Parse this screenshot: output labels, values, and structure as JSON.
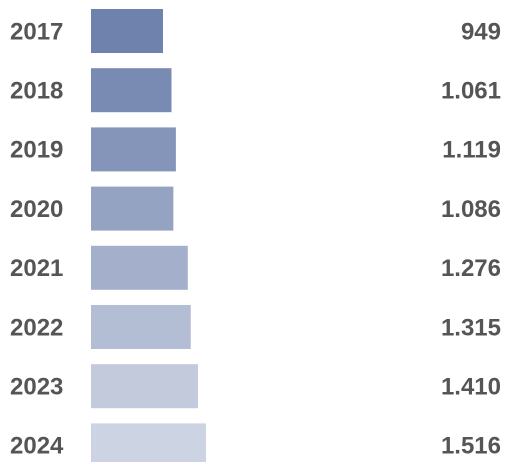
{
  "chart_data": {
    "type": "bar",
    "orientation": "horizontal",
    "categories": [
      "2017",
      "2018",
      "2019",
      "2020",
      "2021",
      "2022",
      "2023",
      "2024"
    ],
    "values": [
      949,
      1061,
      1119,
      1086,
      1276,
      1315,
      1410,
      1516
    ],
    "value_labels": [
      "949",
      "1.061",
      "1.119",
      "1.086",
      "1.276",
      "1.315",
      "1.410",
      "1.516"
    ],
    "colors": [
      "#6f82ad",
      "#7a8bb3",
      "#8595ba",
      "#95a3c3",
      "#a4b0cb",
      "#b3bdd4",
      "#c2cadc",
      "#ccd3e3"
    ]
  }
}
